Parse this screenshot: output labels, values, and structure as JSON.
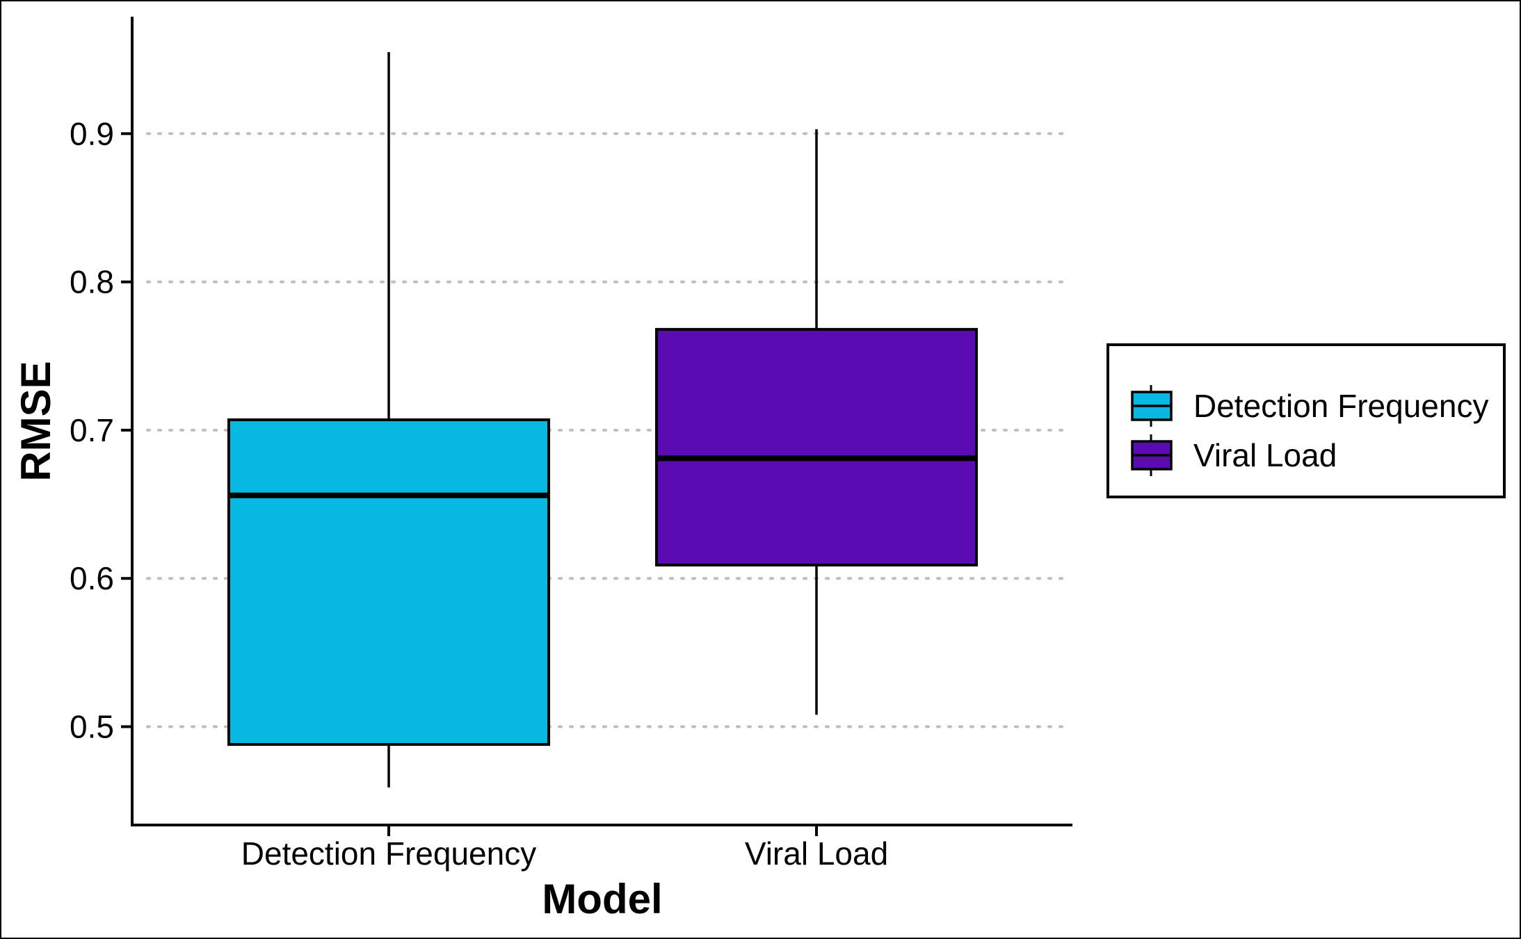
{
  "chart_data": {
    "type": "box",
    "xlabel": "Model",
    "ylabel": "RMSE",
    "ylim": [
      0.435,
      0.98
    ],
    "yticks": [
      0.5,
      0.6,
      0.7,
      0.8,
      0.9
    ],
    "ytick_labels": [
      "0.5",
      "0.6",
      "0.7",
      "0.8",
      "0.9"
    ],
    "grid": "horizontal dotted",
    "legend_position": "right",
    "categories": [
      "Detection Frequency",
      "Viral Load"
    ],
    "series": [
      {
        "name": "Detection Frequency",
        "color": "#06B8E2",
        "whisker_low": 0.459,
        "q1": 0.488,
        "median": 0.656,
        "q3": 0.707,
        "whisker_high": 0.955
      },
      {
        "name": "Viral Load",
        "color": "#5B0BB2",
        "whisker_low": 0.508,
        "q1": 0.609,
        "median": 0.681,
        "q3": 0.768,
        "whisker_high": 0.903
      }
    ]
  },
  "legend": {
    "items": [
      "Detection Frequency",
      "Viral Load"
    ]
  }
}
